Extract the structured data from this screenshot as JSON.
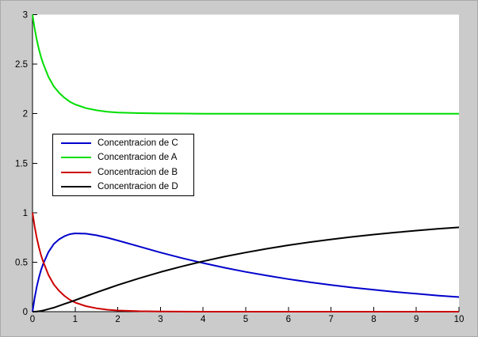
{
  "figure": {
    "background_color": "#cbcbcb",
    "border_color": "#a9a9a9",
    "plot_background_color": "#ffffff",
    "axis_color": "#000000",
    "tick_label_color": "#000000"
  },
  "chart_data": {
    "type": "line",
    "title": "",
    "xlabel": "",
    "ylabel": "",
    "xlim": [
      0,
      10
    ],
    "ylim": [
      0,
      3
    ],
    "x_ticks": [
      0,
      1,
      2,
      3,
      4,
      5,
      6,
      7,
      8,
      9,
      10
    ],
    "y_ticks": [
      0,
      0.5,
      1,
      1.5,
      2,
      2.5,
      3
    ],
    "grid": false,
    "legend_position": "left-middle",
    "legend_border": true,
    "x": [
      0,
      0.05,
      0.1,
      0.15,
      0.2,
      0.25,
      0.375,
      0.5,
      0.625,
      0.75,
      0.875,
      1,
      1.25,
      1.5,
      1.75,
      2,
      2.5,
      3,
      3.5,
      4,
      4.5,
      5,
      5.5,
      6,
      6.5,
      7,
      7.5,
      8,
      8.5,
      9,
      9.5,
      10
    ],
    "series": [
      {
        "name": "Concentracion de C",
        "color": "#0000CC",
        "values": [
          0,
          0.139,
          0.253,
          0.345,
          0.422,
          0.483,
          0.604,
          0.684,
          0.731,
          0.762,
          0.783,
          0.791,
          0.788,
          0.772,
          0.748,
          0.719,
          0.658,
          0.598,
          0.542,
          0.491,
          0.444,
          0.402,
          0.364,
          0.329,
          0.298,
          0.27,
          0.244,
          0.221,
          0.2,
          0.181,
          0.163,
          0.148
        ]
      },
      {
        "name": "Concentracion de A",
        "color": "#00DD00",
        "values": [
          3,
          2.86,
          2.745,
          2.65,
          2.57,
          2.505,
          2.37,
          2.275,
          2.21,
          2.16,
          2.12,
          2.093,
          2.056,
          2.034,
          2.02,
          2.012,
          2.005,
          2.002,
          2.001,
          2,
          2,
          2,
          2,
          2,
          2,
          2,
          2,
          2,
          2,
          2,
          2,
          2
        ]
      },
      {
        "name": "Concentracion de B",
        "color": "#CC0000",
        "values": [
          1,
          0.86,
          0.745,
          0.65,
          0.57,
          0.505,
          0.37,
          0.275,
          0.21,
          0.16,
          0.12,
          0.093,
          0.056,
          0.034,
          0.02,
          0.012,
          0.005,
          0.002,
          0.001,
          0,
          0,
          0,
          0,
          0,
          0,
          0,
          0,
          0,
          0,
          0,
          0,
          0
        ]
      },
      {
        "name": "Concentracion de D",
        "color": "#000000",
        "values": [
          0,
          0.001,
          0.002,
          0.005,
          0.008,
          0.012,
          0.026,
          0.041,
          0.059,
          0.078,
          0.097,
          0.116,
          0.156,
          0.194,
          0.232,
          0.269,
          0.337,
          0.4,
          0.457,
          0.509,
          0.556,
          0.598,
          0.636,
          0.671,
          0.702,
          0.73,
          0.756,
          0.779,
          0.8,
          0.819,
          0.837,
          0.852
        ]
      }
    ]
  }
}
